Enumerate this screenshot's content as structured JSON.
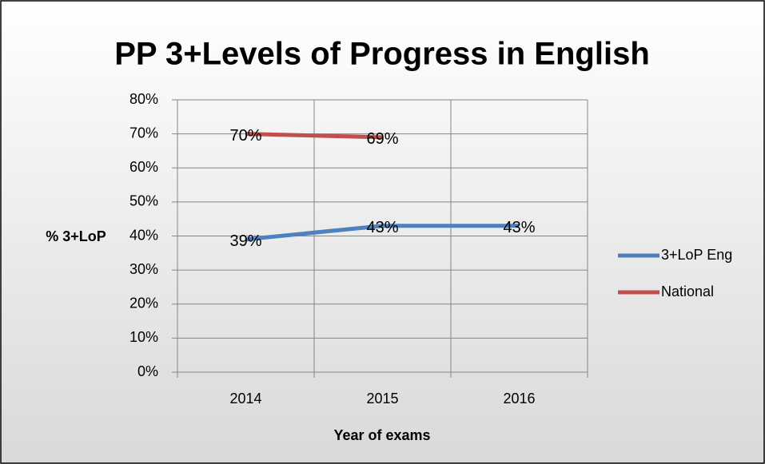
{
  "chart_data": {
    "type": "line",
    "title": "PP 3+Levels of Progress in English",
    "x_label": "Year of exams",
    "y_label": "% 3+LoP",
    "categories": [
      "2014",
      "2015",
      "2016"
    ],
    "series": [
      {
        "name": "3+LoP Eng",
        "color": "#4f81bd",
        "values": [
          39,
          43,
          43
        ],
        "value_labels": [
          "39%",
          "43%",
          "43%"
        ]
      },
      {
        "name": "National",
        "color": "#c0504d",
        "values": [
          70,
          69,
          null
        ],
        "value_labels": [
          "70%",
          "69%",
          null
        ]
      }
    ],
    "ylim": [
      0,
      80
    ],
    "yticks": [
      {
        "value": 0,
        "label": "0%"
      },
      {
        "value": 10,
        "label": "10%"
      },
      {
        "value": 20,
        "label": "20%"
      },
      {
        "value": 30,
        "label": "30%"
      },
      {
        "value": 40,
        "label": "40%"
      },
      {
        "value": 50,
        "label": "50%"
      },
      {
        "value": 60,
        "label": "60%"
      },
      {
        "value": 70,
        "label": "70%"
      },
      {
        "value": 80,
        "label": "80%"
      }
    ],
    "grid": true,
    "legend": "right"
  }
}
